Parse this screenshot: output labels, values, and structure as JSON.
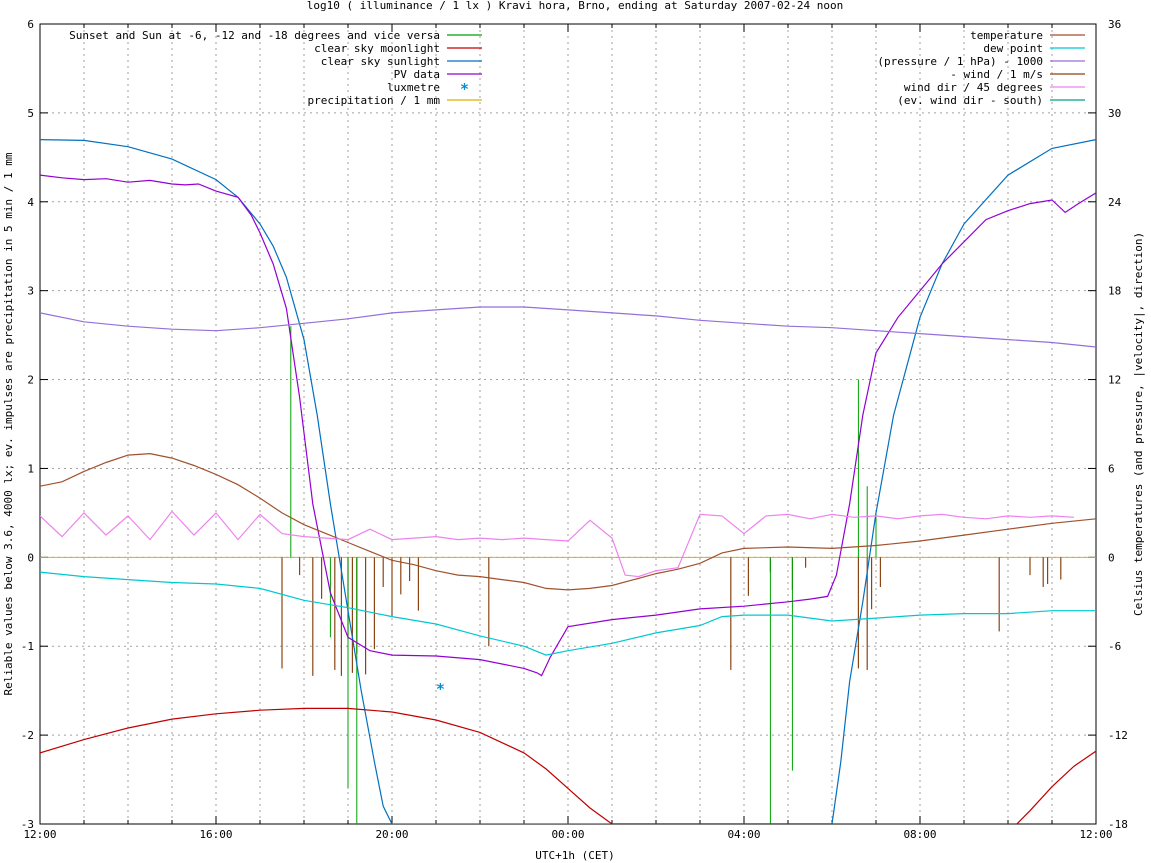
{
  "chart_data": {
    "type": "line",
    "title": "log10 ( illuminance / 1 lx ) Kravi hora, Brno, ending at Saturday 2007-02-24 noon",
    "xlabel": "UTC+1h (CET)",
    "ylabel": "Reliable values below 3.6, 4000 lx; ev. impulses are precipitation in 5 min / 1 mm",
    "y2label": "Celsius temperatures (and pressure, |velocity|, direction)",
    "x_ticks": [
      "12:00",
      "16:00",
      "20:00",
      "00:00",
      "04:00",
      "08:00",
      "12:00"
    ],
    "x_range_hours": [
      0,
      24
    ],
    "y_ticks": [
      "-3",
      "-2",
      "-1",
      "0",
      "1",
      "2",
      "3",
      "4",
      "5",
      "6"
    ],
    "ylim": [
      -3,
      6
    ],
    "y2_ticks": [
      "-18",
      "-12",
      "-6",
      "0",
      "6",
      "12",
      "18",
      "24",
      "30",
      "36"
    ],
    "y2lim": [
      -18,
      36
    ],
    "grid": true,
    "legend_left": [
      {
        "label": "Sunset and Sun at -6, -12 and -18 degrees and vice versa",
        "color": "#00a000",
        "style": "line"
      },
      {
        "label": "clear sky moonlight",
        "color": "#c00000",
        "style": "line"
      },
      {
        "label": "clear sky sunlight",
        "color": "#0070c0",
        "style": "line"
      },
      {
        "label": "PV data",
        "color": "#9400d3",
        "style": "line"
      },
      {
        "label": "luxmetre",
        "color": "#0090e0",
        "style": "point"
      },
      {
        "label": "precipitation / 1 mm",
        "color": "#e0b000",
        "style": "line"
      }
    ],
    "legend_right": [
      {
        "label": "temperature",
        "color": "#a0522d",
        "style": "line"
      },
      {
        "label": "dew point",
        "color": "#00c8d0",
        "style": "line"
      },
      {
        "label": "(pressure / 1 hPa) - 1000",
        "color": "#9370db",
        "style": "line"
      },
      {
        "label": "- wind / 1 m/s",
        "color": "#8b4513",
        "style": "line"
      },
      {
        "label": "wind dir / 45 degrees",
        "color": "#ee82ee",
        "style": "line"
      },
      {
        "label": "(ev. wind dir - south)",
        "color": "#00a080",
        "style": "line"
      }
    ],
    "series": [
      {
        "name": "clear sky sunlight",
        "axis": "y1",
        "color": "#0070c0",
        "x": [
          0,
          1,
          2,
          3,
          4,
          4.5,
          5,
          5.3,
          5.6,
          6,
          6.3,
          6.6,
          7,
          7.3,
          7.6,
          7.8,
          8.0,
          18.0,
          18.2,
          18.4,
          18.7,
          19.0,
          19.4,
          20,
          20.5,
          21,
          22,
          23,
          24
        ],
        "values": [
          4.7,
          4.69,
          4.62,
          4.48,
          4.25,
          4.05,
          3.75,
          3.5,
          3.15,
          2.45,
          1.6,
          0.6,
          -0.6,
          -1.5,
          -2.3,
          -2.8,
          -3.0,
          -3.0,
          -2.3,
          -1.4,
          -0.5,
          0.5,
          1.6,
          2.7,
          3.3,
          3.75,
          4.3,
          4.6,
          4.7
        ]
      },
      {
        "name": "PV data",
        "axis": "y1",
        "color": "#9400d3",
        "x": [
          0,
          0.5,
          1,
          1.5,
          2,
          2.5,
          3,
          3.3,
          3.6,
          4,
          4.5,
          4.8,
          5,
          5.3,
          5.6,
          5.9,
          6.2,
          6.6,
          7.0,
          7.5,
          8,
          9,
          10,
          11,
          11.3,
          11.4,
          11.6,
          12,
          13,
          14,
          15,
          16,
          17,
          17.5,
          17.9,
          18.1,
          18.4,
          18.7,
          19.0,
          19.5,
          20,
          20.5,
          21,
          21.5,
          22,
          22.5,
          23,
          23.3,
          23.6,
          24
        ],
        "values": [
          4.3,
          4.27,
          4.25,
          4.26,
          4.22,
          4.24,
          4.2,
          4.19,
          4.2,
          4.12,
          4.05,
          3.85,
          3.65,
          3.3,
          2.8,
          1.8,
          0.6,
          -0.4,
          -0.9,
          -1.05,
          -1.1,
          -1.11,
          -1.15,
          -1.25,
          -1.3,
          -1.33,
          -1.12,
          -0.78,
          -0.7,
          -0.65,
          -0.58,
          -0.55,
          -0.5,
          -0.47,
          -0.44,
          -0.2,
          0.6,
          1.6,
          2.3,
          2.7,
          3.0,
          3.3,
          3.55,
          3.8,
          3.9,
          3.98,
          4.02,
          3.88,
          3.98,
          4.1
        ]
      },
      {
        "name": "clear sky moonlight",
        "axis": "y1",
        "color": "#c00000",
        "x": [
          0,
          1,
          2,
          3,
          4,
          5,
          6,
          7,
          8,
          9,
          10,
          11,
          11.5,
          12,
          12.5,
          13.0,
          22.2,
          22.5,
          23,
          23.5,
          24
        ],
        "values": [
          -2.2,
          -2.05,
          -1.92,
          -1.82,
          -1.76,
          -1.72,
          -1.7,
          -1.7,
          -1.74,
          -1.83,
          -1.97,
          -2.2,
          -2.38,
          -2.6,
          -2.82,
          -3.0,
          -3.0,
          -2.85,
          -2.58,
          -2.35,
          -2.18
        ]
      },
      {
        "name": "temperature",
        "axis": "y2",
        "color": "#a0522d",
        "x": [
          0,
          0.5,
          1,
          1.5,
          2,
          2.5,
          3,
          3.5,
          4,
          4.5,
          5,
          5.5,
          6,
          6.5,
          7,
          7.5,
          8,
          8.5,
          9,
          9.5,
          10,
          10.5,
          11,
          11.5,
          12,
          12.5,
          13,
          13.5,
          14,
          14.5,
          15,
          15.5,
          16,
          17,
          18,
          19,
          20,
          21,
          22,
          23,
          24
        ],
        "values": [
          4.8,
          5.1,
          5.8,
          6.4,
          6.9,
          7.0,
          6.7,
          6.2,
          5.6,
          4.9,
          4.0,
          3.0,
          2.2,
          1.6,
          1.0,
          0.4,
          -0.2,
          -0.5,
          -0.9,
          -1.2,
          -1.3,
          -1.5,
          -1.7,
          -2.1,
          -2.2,
          -2.1,
          -1.9,
          -1.5,
          -1.1,
          -0.8,
          -0.4,
          0.3,
          0.6,
          0.7,
          0.6,
          0.8,
          1.1,
          1.5,
          1.9,
          2.3,
          2.6
        ]
      },
      {
        "name": "dew point",
        "axis": "y2",
        "color": "#00c8d0",
        "x": [
          0,
          1,
          2,
          3,
          4,
          5,
          6,
          7,
          8,
          9,
          10,
          11,
          11.5,
          12,
          13,
          14,
          15,
          15.5,
          16,
          17,
          18,
          19,
          20,
          21,
          22,
          23,
          24
        ],
        "values": [
          -1.0,
          -1.3,
          -1.5,
          -1.7,
          -1.8,
          -2.1,
          -2.9,
          -3.4,
          -4.0,
          -4.5,
          -5.3,
          -6.0,
          -6.6,
          -6.3,
          -5.8,
          -5.1,
          -4.6,
          -4.0,
          -3.9,
          -3.9,
          -4.3,
          -4.1,
          -3.9,
          -3.8,
          -3.8,
          -3.6,
          -3.6
        ]
      },
      {
        "name": "(pressure / 1 hPa) - 1000",
        "axis": "y2",
        "color": "#9370db",
        "x": [
          0,
          1,
          2,
          3,
          4,
          5,
          6,
          7,
          8,
          9,
          10,
          11,
          12,
          13,
          14,
          15,
          16,
          17,
          18,
          19,
          20,
          21,
          22,
          23,
          24
        ],
        "values": [
          16.5,
          15.9,
          15.6,
          15.4,
          15.3,
          15.5,
          15.8,
          16.1,
          16.5,
          16.7,
          16.9,
          16.9,
          16.7,
          16.5,
          16.3,
          16.0,
          15.8,
          15.6,
          15.5,
          15.3,
          15.1,
          14.9,
          14.7,
          14.5,
          14.2
        ]
      },
      {
        "name": "wind dir / 45 degrees",
        "axis": "y2",
        "color": "#ee82ee",
        "x": [
          0,
          0.5,
          1,
          1.5,
          2,
          2.5,
          3,
          3.5,
          4,
          4.5,
          5,
          5.5,
          6,
          6.5,
          7,
          7.5,
          8,
          8.5,
          9,
          9.5,
          10,
          10.5,
          11,
          11.5,
          12,
          12.5,
          13,
          13.3,
          13.6,
          14,
          14.5,
          15,
          15.5,
          16,
          16.5,
          17,
          17.5,
          18,
          18.5,
          19,
          19.5,
          20,
          20.5,
          21,
          21.5,
          22,
          22.5,
          23,
          23.5
        ],
        "values": [
          2.8,
          1.4,
          3.0,
          1.5,
          2.8,
          1.2,
          3.1,
          1.5,
          3.0,
          1.2,
          2.9,
          1.6,
          1.4,
          1.3,
          1.2,
          1.9,
          1.2,
          1.3,
          1.4,
          1.2,
          1.3,
          1.2,
          1.3,
          1.2,
          1.1,
          2.5,
          1.3,
          -1.2,
          -1.3,
          -0.9,
          -0.7,
          2.9,
          2.8,
          1.6,
          2.8,
          2.9,
          2.6,
          2.9,
          2.7,
          2.8,
          2.6,
          2.8,
          2.9,
          2.7,
          2.6,
          2.8,
          2.7,
          2.8,
          2.7
        ]
      }
    ],
    "precipitation_impulses": {
      "axis": "y1",
      "color": "#00a000",
      "x": [
        5.7,
        6.1,
        6.6,
        7.0,
        7.2,
        16.6,
        17.1,
        18.6,
        18.8,
        19.0
      ],
      "values": [
        2.6,
        0.0,
        -0.9,
        -2.6,
        -3.0,
        -3.0,
        -2.4,
        2.0,
        0.8,
        0.5
      ]
    },
    "wind_impulses": {
      "axis": "y2",
      "color": "#8b4513",
      "x": [
        5.5,
        5.9,
        6.2,
        6.4,
        6.7,
        6.85,
        7.0,
        7.1,
        7.2,
        7.4,
        7.6,
        7.8,
        8.0,
        8.2,
        8.4,
        8.6,
        10.2,
        15.7,
        16.1,
        16.6,
        17.1,
        17.4,
        18.6,
        18.8,
        18.9,
        19.1,
        21.8,
        22.5,
        22.8,
        22.9,
        23.2
      ],
      "values": [
        -7.5,
        -1.2,
        -8.0,
        -2.8,
        -7.6,
        -8.0,
        -5.5,
        -7.8,
        -6.5,
        -7.9,
        -6.2,
        -2.0,
        -4.0,
        -2.5,
        -1.6,
        -3.6,
        -6.0,
        -7.6,
        -2.6,
        -1.0,
        -2.2,
        -0.7,
        -7.5,
        -7.6,
        -3.5,
        -2.0,
        -5.0,
        -1.2,
        -2.0,
        -1.8,
        -1.5
      ]
    },
    "luxmetre_points": [
      {
        "x": 9.1,
        "y": -1.46
      }
    ]
  }
}
